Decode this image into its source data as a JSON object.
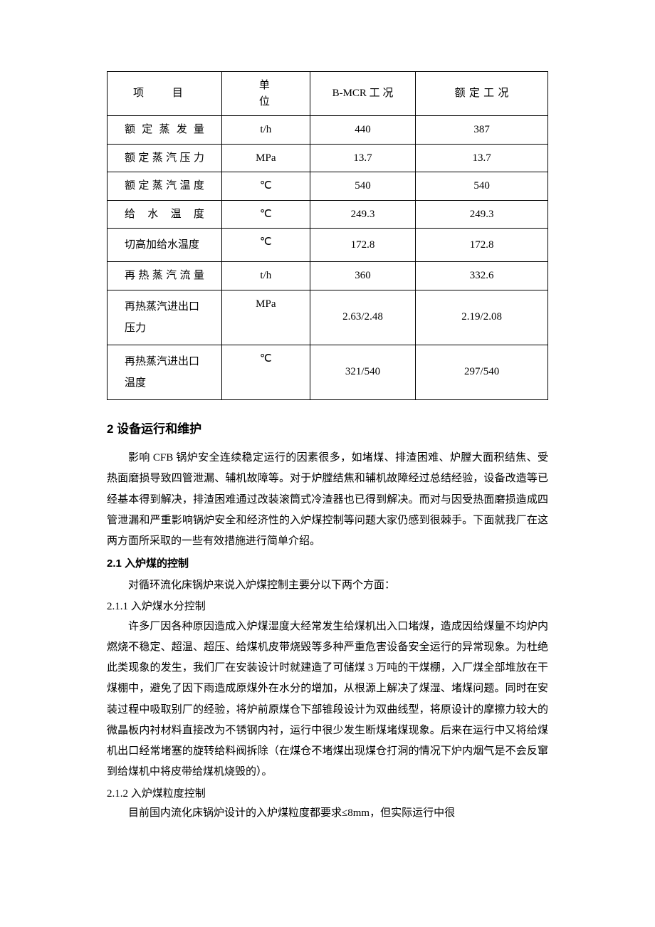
{
  "table": {
    "headers": [
      "项目",
      "单位",
      "B-MCR 工 况",
      "额定工况"
    ],
    "rows": [
      {
        "label": "额定蒸发量",
        "unit": "t/h",
        "bmcr": "440",
        "rated": "387",
        "multiline": false
      },
      {
        "label": "额定蒸汽压力",
        "unit": "MPa",
        "bmcr": "13.7",
        "rated": "13.7",
        "multiline": false
      },
      {
        "label": "额定蒸汽温度",
        "unit": "℃",
        "bmcr": "540",
        "rated": "540",
        "multiline": false
      },
      {
        "label": "给水温度",
        "unit": "℃",
        "bmcr": "249.3",
        "rated": "249.3",
        "multiline": false
      },
      {
        "label": "切高加给水温度",
        "unit": "℃",
        "bmcr": "172.8",
        "rated": "172.8",
        "multiline": true
      },
      {
        "label": "再热蒸汽流量",
        "unit": "t/h",
        "bmcr": "360",
        "rated": "332.6",
        "multiline": false
      },
      {
        "label": "再热蒸汽进出口压力",
        "unit": "MPa",
        "bmcr": "2.63/2.48",
        "rated": "2.19/2.08",
        "multiline": true
      },
      {
        "label": "再热蒸汽进出口温度",
        "unit": "℃",
        "bmcr": "321/540",
        "rated": "297/540",
        "multiline": true
      }
    ]
  },
  "section2": {
    "heading": "2  设备运行和维护",
    "para": "影响 CFB 锅炉安全连续稳定运行的因素很多，如堵煤、排渣困难、炉膛大面积结焦、受热面磨损导致四管泄漏、辅机故障等。对于炉膛结焦和辅机故障经过总结经验，设备改造等已经基本得到解决，排渣困难通过改装滚筒式冷渣器也已得到解决。而对与因受热面磨损造成四管泄漏和严重影响锅炉安全和经济性的入炉煤控制等问题大家仍感到很棘手。下面就我厂在这两方面所采取的一些有效措施进行简单介绍。"
  },
  "section21": {
    "heading": "2.1  入炉煤的控制",
    "lead": "对循环流化床锅炉来说入炉煤控制主要分以下两个方面："
  },
  "section211": {
    "heading": "2.1.1  入炉煤水分控制",
    "para": "许多厂因各种原因造成入炉煤湿度大经常发生给煤机出入口堵煤，造成因给煤量不均炉内燃烧不稳定、超温、超压、给煤机皮带烧毁等多种严重危害设备安全运行的异常现象。为杜绝此类现象的发生，我们厂在安装设计时就建造了可储煤 3 万吨的干煤棚，入厂煤全部堆放在干煤棚中，避免了因下雨造成原煤外在水分的增加，从根源上解决了煤湿、堵煤问题。同时在安装过程中吸取别厂的经验，将炉前原煤仓下部锥段设计为双曲线型，将原设计的摩擦力较大的微晶板内衬材料直接改为不锈钢内衬，运行中很少发生断煤堵煤现象。后来在运行中又将给煤机出口经常堵塞的旋转给料阀拆除（在煤仓不堵煤出现煤仓打洞的情况下炉内烟气是不会反窜到给煤机中将皮带给煤机烧毁的）。"
  },
  "section212": {
    "heading": "2.1.2  入炉煤粒度控制",
    "para": "目前国内流化床锅炉设计的入炉煤粒度都要求≤8mm，但实际运行中很"
  }
}
